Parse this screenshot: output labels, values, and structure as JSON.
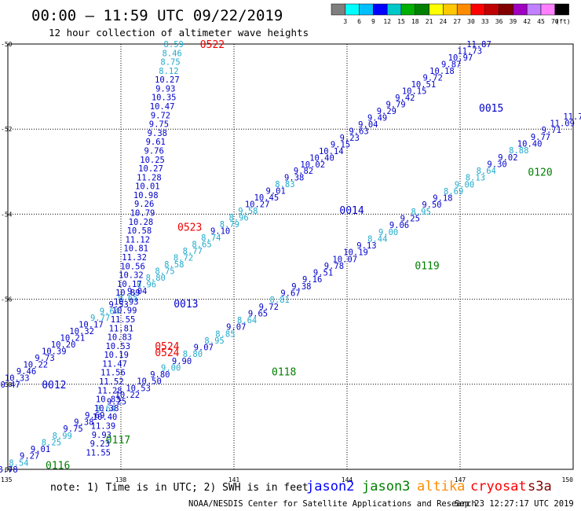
{
  "header": {
    "title": "00:00 – 11:59 UTC 09/22/2019",
    "subtitle": "12 hour collection of altimeter wave heights"
  },
  "colorbar": {
    "colors": [
      "#7f7f7f",
      "#00ffff",
      "#00bfff",
      "#0000ff",
      "#00c8c8",
      "#00b000",
      "#008000",
      "#ffff00",
      "#ffc800",
      "#ff8c00",
      "#ff0000",
      "#c00000",
      "#800000",
      "#a000c0",
      "#c080ff",
      "#ff80ff",
      "#000000"
    ],
    "labels": [
      "3",
      "6",
      "9",
      "12",
      "15",
      "18",
      "21",
      "24",
      "27",
      "30",
      "33",
      "36",
      "39",
      "42",
      "45",
      "70"
    ],
    "unit": "(ft)"
  },
  "note": "note: 1) Time is in UTC; 2) SWH is in feet",
  "satellites": [
    {
      "name": "jason2",
      "color": "#0000ff"
    },
    {
      "name": "jason3",
      "color": "#008000"
    },
    {
      "name": "altika",
      "color": "#ff8c00"
    },
    {
      "name": "cryosat",
      "color": "#ff0000"
    },
    {
      "name": "s3a",
      "color": "#800000"
    }
  ],
  "credit": "NOAA/NESDIS Center for Satellite Applications and Research",
  "timestamp": "Sep 23 12:27:17 UTC 2019",
  "chart_data": {
    "type": "scatter",
    "xlim": [
      135,
      150
    ],
    "ylim": [
      -60,
      -50
    ],
    "x_ticks": [
      "135",
      "138",
      "141",
      "144",
      "147",
      "150"
    ],
    "y_ticks": [
      "-50",
      "-52",
      "-54",
      "-56",
      "-58",
      "-60"
    ],
    "grid": "dotted",
    "colors": {
      "jason2": "#0000cc",
      "jason3": "#008000",
      "cryosat": "#ee0000",
      "light": "#22aacc"
    },
    "tracks": [
      {
        "satellite": "jason2",
        "start": [
          135.0,
          -58.0
        ],
        "end": [
          147.5,
          -50.0
        ],
        "labels": [
          {
            "t": "10.47",
            "c": "jason2"
          },
          {
            "t": "10.33",
            "c": "jason2"
          },
          {
            "t": "9.46",
            "c": "jason2"
          },
          {
            "t": "10.22",
            "c": "jason2"
          },
          {
            "t": "9.73",
            "c": "jason2"
          },
          {
            "t": "10.39",
            "c": "jason2"
          },
          {
            "t": "10.20",
            "c": "jason2"
          },
          {
            "t": "10.21",
            "c": "jason2"
          },
          {
            "t": "10.32",
            "c": "jason2"
          },
          {
            "t": "10.17",
            "c": "jason2"
          },
          {
            "t": "9.77",
            "c": "light"
          },
          {
            "t": "9.64",
            "c": "light"
          },
          {
            "t": "9.53",
            "c": "jason2"
          },
          {
            "t": "9.65",
            "c": "light"
          },
          {
            "t": "9.04",
            "c": "jason2"
          },
          {
            "t": "8.96",
            "c": "light"
          },
          {
            "t": "8.80",
            "c": "light"
          },
          {
            "t": "8.75",
            "c": "light"
          },
          {
            "t": "8.58",
            "c": "light"
          },
          {
            "t": "8.72",
            "c": "light"
          },
          {
            "t": "8.77",
            "c": "light"
          },
          {
            "t": "8.65",
            "c": "light"
          },
          {
            "t": "8.74",
            "c": "light"
          },
          {
            "t": "9.10",
            "c": "jason2"
          },
          {
            "t": "8.79",
            "c": "light"
          },
          {
            "t": "8.96",
            "c": "light"
          },
          {
            "t": "9.58",
            "c": "light"
          },
          {
            "t": "10.27",
            "c": "jason2"
          },
          {
            "t": "10.45",
            "c": "jason2"
          },
          {
            "t": "9.01",
            "c": "jason2"
          },
          {
            "t": "8.83",
            "c": "light"
          },
          {
            "t": "9.38",
            "c": "jason2"
          },
          {
            "t": "9.82",
            "c": "jason2"
          },
          {
            "t": "10.02",
            "c": "jason2"
          },
          {
            "t": "10.40",
            "c": "jason2"
          },
          {
            "t": "10.14",
            "c": "jason2"
          },
          {
            "t": "9.15",
            "c": "jason2"
          },
          {
            "t": "9.23",
            "c": "jason2"
          },
          {
            "t": "9.63",
            "c": "jason2"
          },
          {
            "t": "9.04",
            "c": "jason2"
          },
          {
            "t": "9.49",
            "c": "jason2"
          },
          {
            "t": "9.29",
            "c": "jason2"
          },
          {
            "t": "9.79",
            "c": "jason2"
          },
          {
            "t": "9.42",
            "c": "jason2"
          },
          {
            "t": "10.15",
            "c": "jason2"
          },
          {
            "t": "10.51",
            "c": "jason2"
          },
          {
            "t": "9.72",
            "c": "jason2"
          },
          {
            "t": "10.18",
            "c": "jason2"
          },
          {
            "t": "9.87",
            "c": "jason2"
          },
          {
            "t": "10.97",
            "c": "jason2"
          },
          {
            "t": "11.73",
            "c": "jason2"
          },
          {
            "t": "11.87",
            "c": "jason2"
          }
        ],
        "passes": [
          {
            "t": "0012",
            "x": 135.9,
            "y": -58.0
          },
          {
            "t": "0013",
            "x": 139.4,
            "y": -56.1
          },
          {
            "t": "0014",
            "x": 143.8,
            "y": -53.9
          },
          {
            "t": "0015",
            "x": 147.5,
            "y": -51.5
          }
        ]
      },
      {
        "satellite": "jason3",
        "start": [
          135.0,
          -60.0
        ],
        "end": [
          150.0,
          -51.7
        ],
        "labels": [
          {
            "t": "8.78",
            "c": "jason2"
          },
          {
            "t": "8.54",
            "c": "light"
          },
          {
            "t": "9.27",
            "c": "jason2"
          },
          {
            "t": "9.01",
            "c": "jason2"
          },
          {
            "t": "8.25",
            "c": "light"
          },
          {
            "t": "8.99",
            "c": "light"
          },
          {
            "t": "9.75",
            "c": "jason2"
          },
          {
            "t": "9.38",
            "c": "jason2"
          },
          {
            "t": "9.69",
            "c": "jason2"
          },
          {
            "t": "8.64",
            "c": "light"
          },
          {
            "t": "9.25",
            "c": "jason2"
          },
          {
            "t": "10.22",
            "c": "jason2"
          },
          {
            "t": "10.53",
            "c": "jason2"
          },
          {
            "t": "10.50",
            "c": "jason2"
          },
          {
            "t": "9.80",
            "c": "jason2"
          },
          {
            "t": "9.00",
            "c": "light"
          },
          {
            "t": "9.90",
            "c": "jason2"
          },
          {
            "t": "8.80",
            "c": "light"
          },
          {
            "t": "9.07",
            "c": "jason2"
          },
          {
            "t": "8.95",
            "c": "light"
          },
          {
            "t": "8.85",
            "c": "light"
          },
          {
            "t": "9.07",
            "c": "jason2"
          },
          {
            "t": "8.64",
            "c": "light"
          },
          {
            "t": "9.65",
            "c": "jason2"
          },
          {
            "t": "9.72",
            "c": "jason2"
          },
          {
            "t": "8.81",
            "c": "light"
          },
          {
            "t": "9.67",
            "c": "jason2"
          },
          {
            "t": "9.38",
            "c": "jason2"
          },
          {
            "t": "9.16",
            "c": "jason2"
          },
          {
            "t": "9.51",
            "c": "jason2"
          },
          {
            "t": "9.78",
            "c": "jason2"
          },
          {
            "t": "10.07",
            "c": "jason2"
          },
          {
            "t": "10.19",
            "c": "jason2"
          },
          {
            "t": "9.13",
            "c": "jason2"
          },
          {
            "t": "8.44",
            "c": "light"
          },
          {
            "t": "9.00",
            "c": "light"
          },
          {
            "t": "9.06",
            "c": "jason2"
          },
          {
            "t": "9.25",
            "c": "jason2"
          },
          {
            "t": "8.95",
            "c": "light"
          },
          {
            "t": "9.50",
            "c": "jason2"
          },
          {
            "t": "9.18",
            "c": "jason2"
          },
          {
            "t": "8.69",
            "c": "light"
          },
          {
            "t": "9.00",
            "c": "light"
          },
          {
            "t": "8.13",
            "c": "light"
          },
          {
            "t": "8.64",
            "c": "light"
          },
          {
            "t": "9.30",
            "c": "jason2"
          },
          {
            "t": "9.02",
            "c": "jason2"
          },
          {
            "t": "8.88",
            "c": "light"
          },
          {
            "t": "10.40",
            "c": "jason2"
          },
          {
            "t": "9.77",
            "c": "jason2"
          },
          {
            "t": "9.71",
            "c": "jason2"
          },
          {
            "t": "11.09",
            "c": "jason2"
          },
          {
            "t": "11.7",
            "c": "jason2"
          }
        ],
        "passes": [
          {
            "t": "0116",
            "x": 136.0,
            "y": -59.9
          },
          {
            "t": "0117",
            "x": 137.6,
            "y": -59.3
          },
          {
            "t": "0118",
            "x": 142.0,
            "y": -57.7
          },
          {
            "t": "0119",
            "x": 145.8,
            "y": -55.2
          },
          {
            "t": "0120",
            "x": 148.8,
            "y": -53.0
          }
        ]
      },
      {
        "satellite": "cryosat",
        "start": [
          139.4,
          -50.0
        ],
        "end": [
          137.4,
          -59.6
        ],
        "labels": [
          {
            "t": "8.59",
            "c": "light"
          },
          {
            "t": "8.46",
            "c": "light"
          },
          {
            "t": "8.75",
            "c": "light"
          },
          {
            "t": "8.12",
            "c": "light"
          },
          {
            "t": "10.27",
            "c": "jason2"
          },
          {
            "t": "9.93",
            "c": "jason2"
          },
          {
            "t": "10.35",
            "c": "jason2"
          },
          {
            "t": "10.47",
            "c": "jason2"
          },
          {
            "t": "9.72",
            "c": "jason2"
          },
          {
            "t": "9.75",
            "c": "jason2"
          },
          {
            "t": "9.38",
            "c": "jason2"
          },
          {
            "t": "9.61",
            "c": "jason2"
          },
          {
            "t": "9.76",
            "c": "jason2"
          },
          {
            "t": "10.25",
            "c": "jason2"
          },
          {
            "t": "10.27",
            "c": "jason2"
          },
          {
            "t": "11.28",
            "c": "jason2"
          },
          {
            "t": "10.01",
            "c": "jason2"
          },
          {
            "t": "10.98",
            "c": "jason2"
          },
          {
            "t": "9.26",
            "c": "jason2"
          },
          {
            "t": "10.79",
            "c": "jason2"
          },
          {
            "t": "10.28",
            "c": "jason2"
          },
          {
            "t": "10.58",
            "c": "jason2"
          },
          {
            "t": "11.12",
            "c": "jason2"
          },
          {
            "t": "10.81",
            "c": "jason2"
          },
          {
            "t": "11.32",
            "c": "jason2"
          },
          {
            "t": "10.56",
            "c": "jason2"
          },
          {
            "t": "10.32",
            "c": "jason2"
          },
          {
            "t": "10.17",
            "c": "jason2"
          },
          {
            "t": "10.89",
            "c": "jason2"
          },
          {
            "t": "10.93",
            "c": "jason2"
          },
          {
            "t": "10.99",
            "c": "jason2"
          },
          {
            "t": "11.55",
            "c": "jason2"
          },
          {
            "t": "11.81",
            "c": "jason2"
          },
          {
            "t": "10.83",
            "c": "jason2"
          },
          {
            "t": "10.53",
            "c": "jason2"
          },
          {
            "t": "10.19",
            "c": "jason2"
          },
          {
            "t": "11.47",
            "c": "jason2"
          },
          {
            "t": "11.56",
            "c": "jason2"
          },
          {
            "t": "11.52",
            "c": "jason2"
          },
          {
            "t": "11.28",
            "c": "jason2"
          },
          {
            "t": "10.83",
            "c": "jason2"
          },
          {
            "t": "10.38",
            "c": "jason2"
          },
          {
            "t": "10.40",
            "c": "jason2"
          },
          {
            "t": "11.39",
            "c": "jason2"
          },
          {
            "t": "9.93",
            "c": "jason2"
          },
          {
            "t": "9.23",
            "c": "jason2"
          },
          {
            "t": "11.55",
            "c": "jason2"
          }
        ],
        "passes": [
          {
            "t": "0522",
            "x": 140.1,
            "y": -50.0
          },
          {
            "t": "0523",
            "x": 139.5,
            "y": -54.3
          },
          {
            "t": "0524",
            "x": 138.9,
            "y": -57.1
          },
          {
            "t": "0524",
            "x": 138.9,
            "y": -57.25
          }
        ]
      }
    ]
  }
}
